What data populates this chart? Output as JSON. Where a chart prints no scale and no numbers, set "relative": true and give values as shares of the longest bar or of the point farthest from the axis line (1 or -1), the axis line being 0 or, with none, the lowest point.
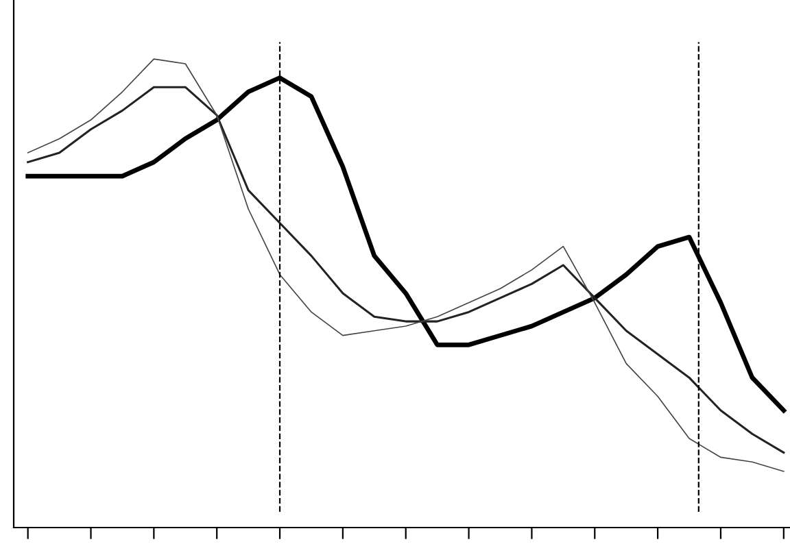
{
  "chart_data": {
    "type": "line",
    "relative": true,
    "categories": [
      null,
      null,
      null,
      null,
      null,
      null,
      null,
      null,
      null,
      null,
      null,
      null,
      null,
      null,
      null,
      null,
      null,
      null,
      null,
      null,
      null,
      null,
      null,
      null,
      null
    ],
    "series": [
      {
        "color": "#000000",
        "values": [
          0.75,
          0.75,
          0.75,
          0.75,
          0.78,
          0.83,
          0.87,
          0.93,
          0.96,
          0.92,
          0.77,
          0.58,
          0.5,
          0.39,
          0.39,
          0.41,
          0.43,
          0.46,
          0.49,
          0.54,
          0.6,
          0.62,
          0.48,
          0.32,
          0.25
        ]
      },
      {
        "color": "#222222",
        "values": [
          0.78,
          0.8,
          0.85,
          0.89,
          0.94,
          0.94,
          0.88,
          0.72,
          0.65,
          0.58,
          0.5,
          0.45,
          0.44,
          0.44,
          0.46,
          0.49,
          0.52,
          0.56,
          0.49,
          0.42,
          0.37,
          0.32,
          0.25,
          0.2,
          0.16
        ]
      },
      {
        "color": "#444444",
        "values": [
          0.8,
          0.83,
          0.87,
          0.93,
          1.0,
          0.99,
          0.88,
          0.68,
          0.54,
          0.46,
          0.41,
          0.42,
          0.43,
          0.45,
          0.48,
          0.51,
          0.55,
          0.6,
          0.48,
          0.35,
          0.28,
          0.19,
          0.15,
          0.14,
          0.12
        ]
      }
    ],
    "grid": false,
    "legend": false,
    "marker": "none",
    "line_style": "solid"
  }
}
